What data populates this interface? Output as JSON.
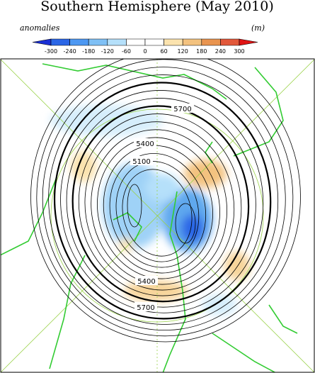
{
  "title": "Southern Hemisphere (May 2010)",
  "colorbar": {
    "label": "anomalies",
    "units": "(m)",
    "ticks": [
      -300,
      -240,
      -180,
      -120,
      -60,
      0,
      60,
      120,
      180,
      240,
      300
    ],
    "colors": [
      "#1a2fd6",
      "#2b66e6",
      "#4d98f2",
      "#7fc0f5",
      "#b5e0fa",
      "#ffffff",
      "#ffffff",
      "#fbe3ae",
      "#f3c27f",
      "#e9944f",
      "#e2583a",
      "#e01414"
    ]
  },
  "contour_labels": [
    "5700",
    "5400",
    "5100",
    "5400",
    "5700"
  ]
}
